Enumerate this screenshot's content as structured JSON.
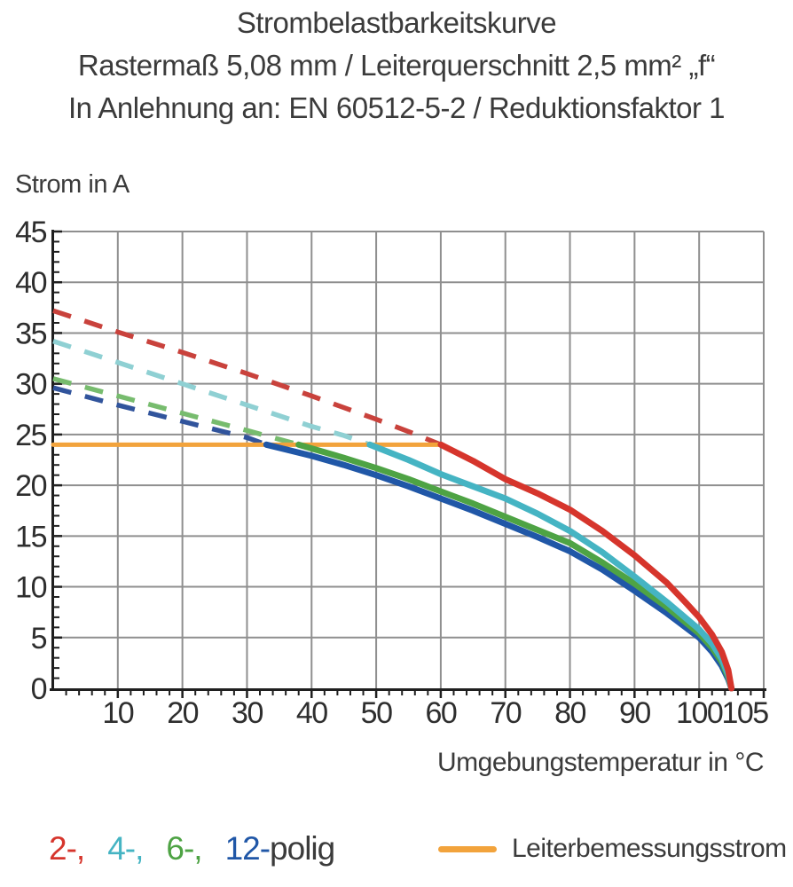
{
  "header": {
    "title": "Strombelastbarkeitskurve",
    "subtitle_dimension": "Rastermaß 5,08 mm / Leiterquerschnitt 2,5 mm² „f“",
    "subtitle_standard": "In Anlehnung an: EN 60512-5-2 / Reduktionsfaktor 1"
  },
  "chart_data": {
    "type": "line",
    "title": "Strombelastbarkeitskurve",
    "subtitle": "Rastermaß 5,08 mm / Leiterquerschnitt 2,5 mm² „f“ / In Anlehnung an: EN 60512-5-2 / Reduktionsfaktor 1",
    "xlabel": "Umgebungstemperatur in °C",
    "ylabel": "Strom in A",
    "xlim": [
      0,
      110
    ],
    "ylim": [
      0,
      45
    ],
    "x_ticks": [
      10,
      20,
      30,
      40,
      50,
      60,
      70,
      80,
      90,
      100,
      105
    ],
    "y_ticks": [
      0,
      5,
      10,
      15,
      20,
      25,
      30,
      35,
      40,
      45
    ],
    "x_minor_step": 2,
    "y_minor_step": 1,
    "grid": true,
    "grid_color": "#8f8f8f",
    "axis_color": "#1f1f1f",
    "reference_line": {
      "label": "Leiterbemessungsstrom",
      "value": 24,
      "x_start": 0,
      "x_end": 60,
      "color": "#f2a33c"
    },
    "series": [
      {
        "name": "2-polig",
        "color": "#d6352c",
        "dash_color": "#c9423c",
        "derated_dashed": [
          [
            0,
            37.2
          ],
          [
            10,
            35.1
          ],
          [
            20,
            33.1
          ],
          [
            30,
            31.0
          ],
          [
            40,
            28.8
          ],
          [
            50,
            26.5
          ],
          [
            55,
            25.3
          ],
          [
            60,
            24.0
          ]
        ],
        "solid": [
          [
            60,
            24.0
          ],
          [
            65,
            22.4
          ],
          [
            70,
            20.6
          ],
          [
            75,
            19.2
          ],
          [
            80,
            17.6
          ],
          [
            85,
            15.5
          ],
          [
            90,
            13.1
          ],
          [
            95,
            10.4
          ],
          [
            98,
            8.4
          ],
          [
            100,
            7.0
          ],
          [
            102,
            5.3
          ],
          [
            103.5,
            3.6
          ],
          [
            104.5,
            1.8
          ],
          [
            105,
            0
          ]
        ]
      },
      {
        "name": "4-polig",
        "color": "#45b4c3",
        "dash_color": "#8fd0d3",
        "derated_dashed": [
          [
            0,
            34.2
          ],
          [
            10,
            32.1
          ],
          [
            20,
            30.0
          ],
          [
            30,
            27.9
          ],
          [
            40,
            25.8
          ],
          [
            45,
            24.9
          ],
          [
            49,
            24.0
          ]
        ],
        "solid": [
          [
            49,
            24.0
          ],
          [
            55,
            22.5
          ],
          [
            60,
            21.1
          ],
          [
            65,
            19.9
          ],
          [
            70,
            18.7
          ],
          [
            75,
            17.2
          ],
          [
            80,
            15.5
          ],
          [
            85,
            13.4
          ],
          [
            90,
            11.0
          ],
          [
            95,
            8.5
          ],
          [
            100,
            5.8
          ],
          [
            102,
            4.4
          ],
          [
            103.5,
            2.9
          ],
          [
            104.5,
            1.3
          ],
          [
            105,
            0
          ]
        ]
      },
      {
        "name": "6-polig",
        "color": "#4ea344",
        "dash_color": "#77bc6e",
        "derated_dashed": [
          [
            0,
            30.5
          ],
          [
            10,
            28.8
          ],
          [
            20,
            27.1
          ],
          [
            30,
            25.4
          ],
          [
            38,
            24.0
          ]
        ],
        "solid": [
          [
            38,
            24.0
          ],
          [
            45,
            22.7
          ],
          [
            50,
            21.7
          ],
          [
            55,
            20.6
          ],
          [
            60,
            19.4
          ],
          [
            65,
            18.2
          ],
          [
            70,
            16.9
          ],
          [
            75,
            15.6
          ],
          [
            80,
            14.3
          ],
          [
            85,
            12.4
          ],
          [
            90,
            10.3
          ],
          [
            95,
            8.0
          ],
          [
            100,
            5.4
          ],
          [
            102,
            4.0
          ],
          [
            103.5,
            2.6
          ],
          [
            104.5,
            1.1
          ],
          [
            105,
            0
          ]
        ]
      },
      {
        "name": "12-polig",
        "color": "#2057a7",
        "dash_color": "#31549c",
        "derated_dashed": [
          [
            0,
            29.6
          ],
          [
            10,
            27.9
          ],
          [
            20,
            26.3
          ],
          [
            30,
            24.7
          ],
          [
            33,
            24.0
          ]
        ],
        "solid": [
          [
            33,
            24.0
          ],
          [
            40,
            22.9
          ],
          [
            45,
            22.0
          ],
          [
            50,
            21.0
          ],
          [
            55,
            19.9
          ],
          [
            60,
            18.7
          ],
          [
            65,
            17.5
          ],
          [
            70,
            16.2
          ],
          [
            75,
            14.9
          ],
          [
            80,
            13.5
          ],
          [
            85,
            11.7
          ],
          [
            90,
            9.6
          ],
          [
            95,
            7.4
          ],
          [
            100,
            5.0
          ],
          [
            102,
            3.6
          ],
          [
            103.5,
            2.2
          ],
          [
            104.5,
            0.9
          ],
          [
            105,
            0
          ]
        ]
      }
    ],
    "legend_position": "bottom"
  },
  "legend": {
    "poles": [
      {
        "label": "2-,",
        "color": "#d6352c"
      },
      {
        "label": "4-,",
        "color": "#45b4c3"
      },
      {
        "label": "6-,",
        "color": "#4ea344"
      },
      {
        "label": "12-",
        "color": "#2057a7"
      }
    ],
    "poles_suffix": "polig",
    "rated": {
      "label": "Leiterbemessungsstrom",
      "color": "#f2a33c"
    }
  }
}
